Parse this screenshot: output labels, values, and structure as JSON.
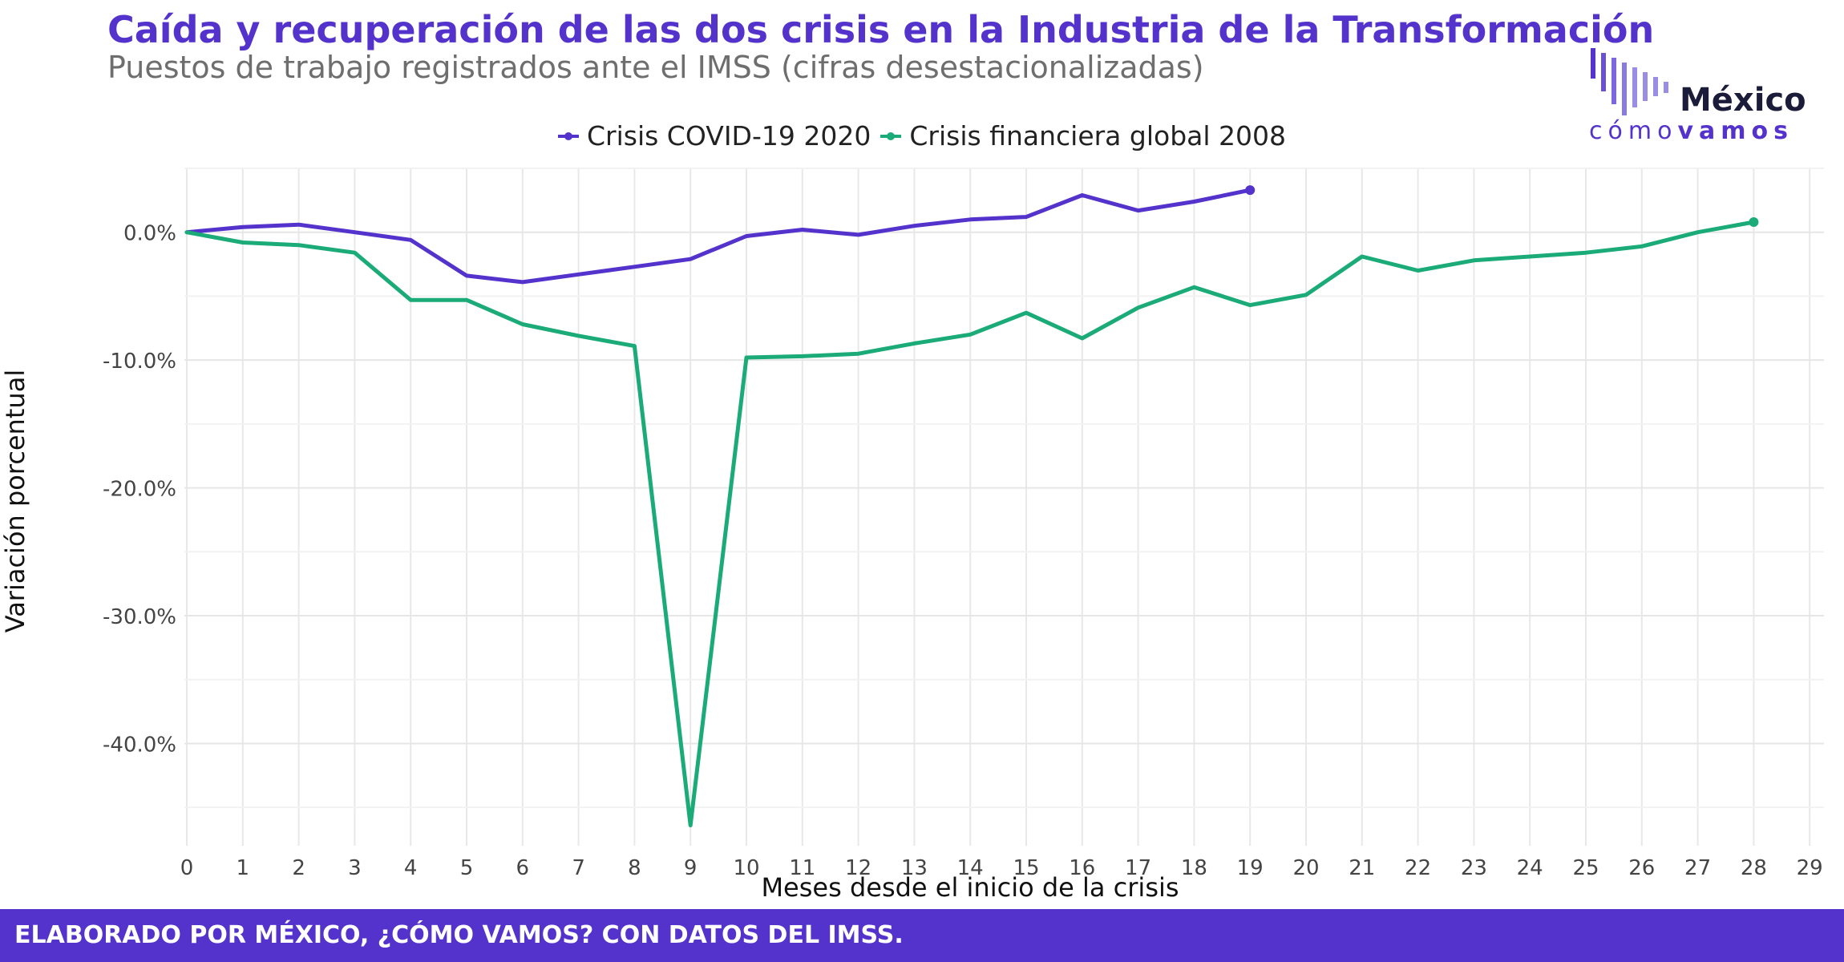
{
  "header": {
    "title": "Caída y recuperación de las dos crisis en la Industria de la Transformación",
    "subtitle": "Puestos de trabajo registrados ante el IMSS (cifras desestacionalizadas)"
  },
  "logo": {
    "word": "México",
    "sub_a": "cómo",
    "sub_b": "vamos",
    "bar_colors": [
      "#5433cc",
      "#6a4fd8",
      "#7d67df",
      "#8a7ae3",
      "#9a8de6"
    ]
  },
  "legend": {
    "items": [
      {
        "label": "Crisis COVID-19 2020",
        "color": "#5433cc"
      },
      {
        "label": "Crisis financiera global 2008",
        "color": "#1aab78"
      }
    ]
  },
  "chart_data": {
    "type": "line",
    "xlabel": "Meses desde el inicio de la crisis",
    "ylabel": "Variación porcentual",
    "xlim": [
      0,
      29
    ],
    "ylim": [
      -48,
      5
    ],
    "x_ticks": [
      0,
      1,
      2,
      3,
      4,
      5,
      6,
      7,
      8,
      9,
      10,
      11,
      12,
      13,
      14,
      15,
      16,
      17,
      18,
      19,
      20,
      21,
      22,
      23,
      24,
      25,
      26,
      27,
      28,
      29
    ],
    "y_ticks": [
      0,
      -10,
      -20,
      -30,
      -40
    ],
    "y_tick_labels": [
      "0.0%",
      "-10.0%",
      "-20.0%",
      "-30.0%",
      "-40.0%"
    ],
    "grid": true,
    "legend_position": "top",
    "series": [
      {
        "name": "Crisis COVID-19 2020",
        "color": "#5433cc",
        "x": [
          0,
          1,
          2,
          3,
          4,
          5,
          6,
          7,
          8,
          9,
          10,
          11,
          12,
          13,
          14,
          15,
          16,
          17,
          18,
          19
        ],
        "y": [
          0.0,
          0.4,
          0.6,
          0.0,
          -0.6,
          -3.4,
          -3.9,
          -3.3,
          -2.7,
          -2.1,
          -0.3,
          0.2,
          -0.2,
          0.5,
          1.0,
          1.2,
          2.9,
          1.7,
          2.4,
          3.3
        ]
      },
      {
        "name": "Crisis financiera global 2008",
        "color": "#1aab78",
        "x": [
          0,
          1,
          2,
          3,
          4,
          5,
          6,
          7,
          8,
          9,
          10,
          11,
          12,
          13,
          14,
          15,
          16,
          17,
          18,
          19,
          20,
          21,
          22,
          23,
          24,
          25,
          26,
          27,
          28
        ],
        "y": [
          0.0,
          -0.8,
          -1.0,
          -1.6,
          -5.3,
          -5.3,
          -7.2,
          -8.1,
          -8.9,
          -46.4,
          -9.8,
          -9.7,
          -9.5,
          -8.7,
          -8.0,
          -6.3,
          -8.3,
          -5.9,
          -4.3,
          -5.7,
          -4.9,
          -1.9,
          -3.0,
          -2.2,
          -1.9,
          -1.6,
          -1.1,
          0.0,
          0.8
        ]
      }
    ]
  },
  "footer": {
    "text": "ELABORADO POR MÉXICO, ¿CÓMO VAMOS? CON DATOS DEL IMSS."
  }
}
